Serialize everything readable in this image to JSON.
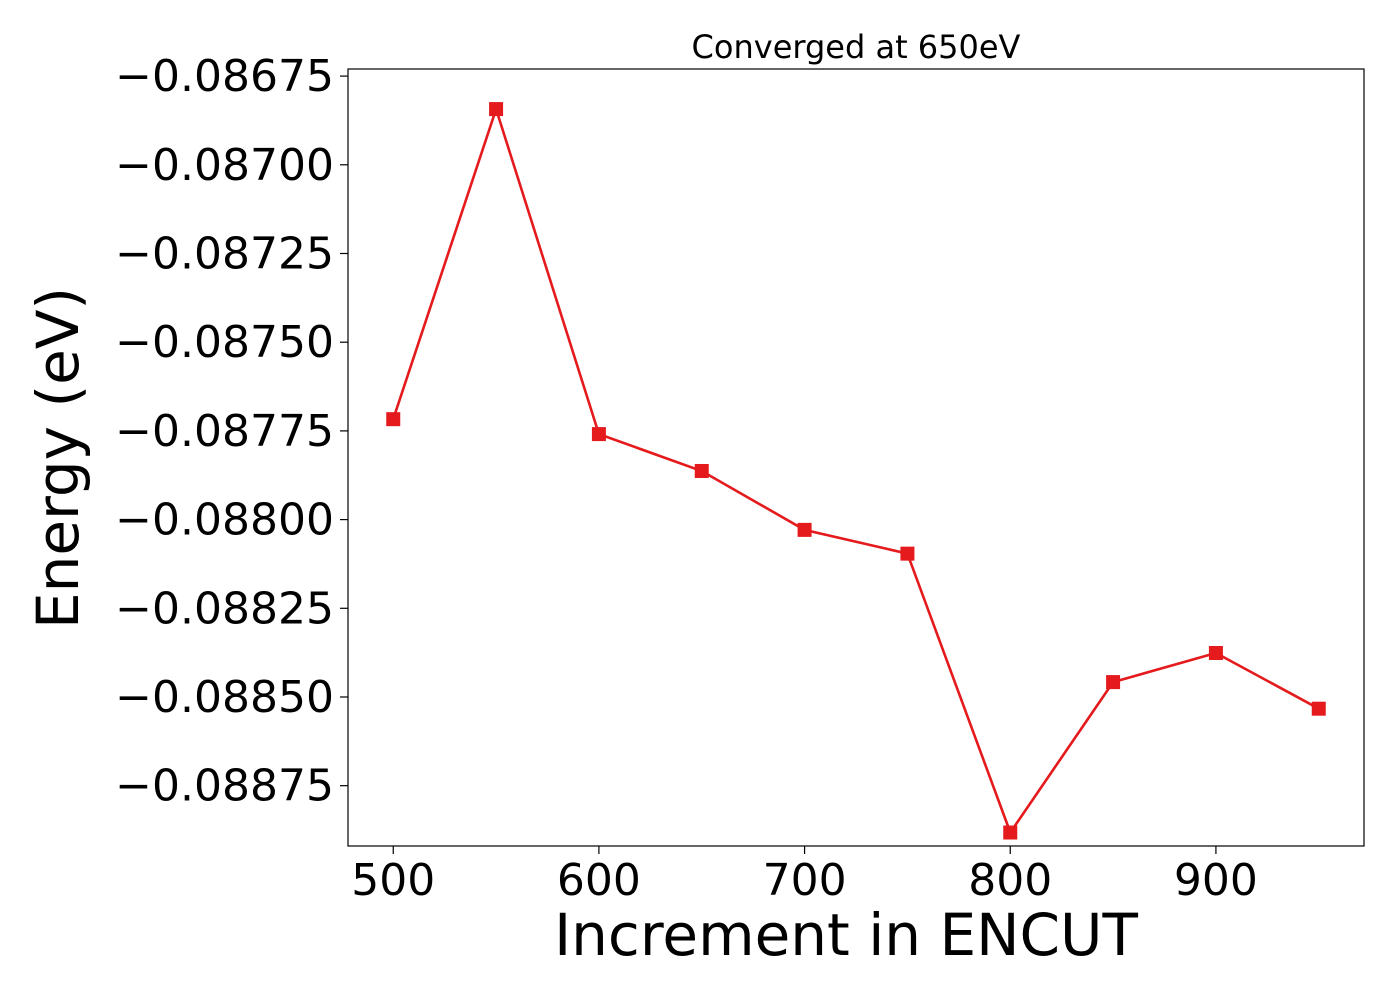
{
  "chart_data": {
    "type": "line",
    "title": "Converged at 650eV",
    "xlabel": "Increment in ENCUT",
    "ylabel": "Energy (eV)",
    "x_ticks": [
      500,
      600,
      700,
      800,
      900
    ],
    "x_tick_labels": [
      "500",
      "600",
      "700",
      "800",
      "900"
    ],
    "y_ticks": [
      -0.08675,
      -0.087,
      -0.08725,
      -0.0875,
      -0.08775,
      -0.088,
      -0.08825,
      -0.0885,
      -0.08875
    ],
    "y_tick_labels": [
      "−0.08675",
      "−0.08700",
      "−0.08725",
      "−0.08750",
      "−0.08775",
      "−0.08800",
      "−0.08825",
      "−0.08850",
      "−0.08875"
    ],
    "xlim": [
      478,
      972
    ],
    "ylim": [
      -0.08892,
      -0.08673
    ],
    "grid": false,
    "series": [
      {
        "color": "#e41a1c",
        "marker": "square",
        "x": [
          500,
          550,
          600,
          650,
          700,
          750,
          800,
          850,
          900,
          950
        ],
        "y": [
          -0.087717,
          -0.086843,
          -0.087759,
          -0.087863,
          -0.088029,
          -0.088096,
          -0.088882,
          -0.088458,
          -0.088376,
          -0.088533
        ]
      }
    ]
  }
}
